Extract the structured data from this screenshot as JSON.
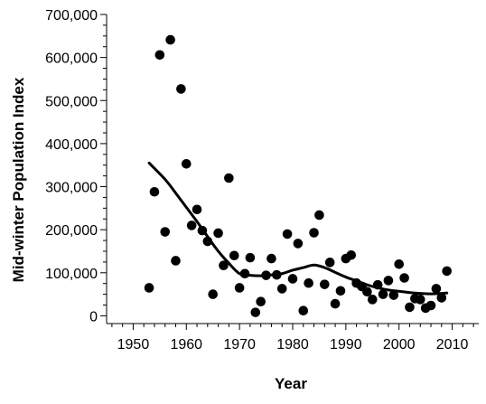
{
  "chart_data": {
    "type": "scatter",
    "title": "",
    "xlabel": "Year",
    "ylabel": "Mid-winter Population Index",
    "xlim": [
      1945,
      2015
    ],
    "ylim": [
      -18000,
      700000
    ],
    "x_ticks": [
      1950,
      1960,
      1970,
      1980,
      1990,
      2000,
      2010
    ],
    "x_tick_labels": [
      "1950",
      "1960",
      "1970",
      "1980",
      "1990",
      "2000",
      "2010"
    ],
    "y_ticks": [
      0,
      100000,
      200000,
      300000,
      400000,
      500000,
      600000,
      700000
    ],
    "y_tick_labels": [
      "0",
      "100,000",
      "200,000",
      "300,000",
      "400,000",
      "500,000",
      "600,000",
      "700,000"
    ],
    "grid": false,
    "legend": "none",
    "point_color": "#000000",
    "series": [
      {
        "type": "scatter",
        "points": [
          [
            1953,
            65000
          ],
          [
            1954,
            288000
          ],
          [
            1955,
            606000
          ],
          [
            1956,
            195000
          ],
          [
            1957,
            641000
          ],
          [
            1958,
            128000
          ],
          [
            1959,
            527000
          ],
          [
            1960,
            353000
          ],
          [
            1961,
            210000
          ],
          [
            1962,
            247000
          ],
          [
            1963,
            198000
          ],
          [
            1964,
            173000
          ],
          [
            1965,
            50000
          ],
          [
            1966,
            192000
          ],
          [
            1967,
            117000
          ],
          [
            1968,
            320000
          ],
          [
            1969,
            140000
          ],
          [
            1970,
            65000
          ],
          [
            1971,
            98000
          ],
          [
            1972,
            135000
          ],
          [
            1973,
            8000
          ],
          [
            1974,
            33000
          ],
          [
            1975,
            94000
          ],
          [
            1976,
            133000
          ],
          [
            1977,
            95000
          ],
          [
            1978,
            63000
          ],
          [
            1979,
            190000
          ],
          [
            1980,
            86000
          ],
          [
            1981,
            168000
          ],
          [
            1982,
            12000
          ],
          [
            1983,
            76000
          ],
          [
            1984,
            193000
          ],
          [
            1985,
            234000
          ],
          [
            1986,
            73000
          ],
          [
            1987,
            124000
          ],
          [
            1988,
            28000
          ],
          [
            1989,
            58000
          ],
          [
            1990,
            133000
          ],
          [
            1991,
            141000
          ],
          [
            1992,
            76000
          ],
          [
            1993,
            68000
          ],
          [
            1994,
            56000
          ],
          [
            1995,
            38000
          ],
          [
            1996,
            72000
          ],
          [
            1997,
            50000
          ],
          [
            1998,
            82000
          ],
          [
            1999,
            48000
          ],
          [
            2000,
            120000
          ],
          [
            2001,
            88000
          ],
          [
            2002,
            20000
          ],
          [
            2003,
            40000
          ],
          [
            2004,
            38000
          ],
          [
            2005,
            18000
          ],
          [
            2006,
            24000
          ],
          [
            2007,
            63000
          ],
          [
            2008,
            42000
          ],
          [
            2009,
            104000
          ]
        ]
      },
      {
        "type": "line",
        "points": [
          [
            1953,
            355000
          ],
          [
            1956,
            317000
          ],
          [
            1958,
            285000
          ],
          [
            1960,
            252000
          ],
          [
            1962,
            219000
          ],
          [
            1964,
            184000
          ],
          [
            1966,
            150000
          ],
          [
            1968,
            122000
          ],
          [
            1970,
            98000
          ],
          [
            1972,
            94000
          ],
          [
            1974,
            93000
          ],
          [
            1976,
            95000
          ],
          [
            1978,
            98000
          ],
          [
            1980,
            106000
          ],
          [
            1982,
            112000
          ],
          [
            1984,
            118000
          ],
          [
            1986,
            112000
          ],
          [
            1988,
            101000
          ],
          [
            1990,
            90000
          ],
          [
            1992,
            81000
          ],
          [
            1994,
            72000
          ],
          [
            1996,
            65000
          ],
          [
            1998,
            60000
          ],
          [
            2000,
            57000
          ],
          [
            2002,
            54000
          ],
          [
            2004,
            52000
          ],
          [
            2006,
            51000
          ],
          [
            2008,
            52000
          ],
          [
            2009,
            53000
          ]
        ]
      }
    ]
  }
}
